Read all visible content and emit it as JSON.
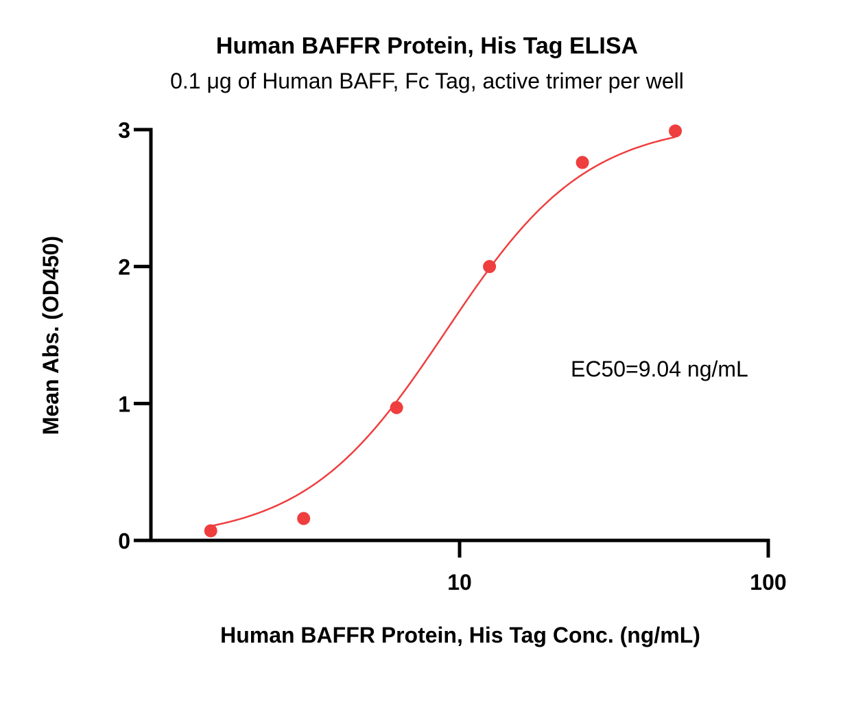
{
  "chart_data": {
    "type": "scatter",
    "title": "Human BAFFR Protein, His Tag ELISA",
    "subtitle": "0.1 μg of Human BAFF, Fc Tag, active trimer per well",
    "xlabel": "Human BAFFR Protein, His Tag Conc. (ng/mL)",
    "ylabel": "Mean Abs. (OD450)",
    "x_scale": "log",
    "xlim": [
      1.0,
      100
    ],
    "ylim": [
      0,
      3
    ],
    "x_ticks": [
      {
        "value": 10,
        "label": "10"
      },
      {
        "value": 100,
        "label": "100"
      }
    ],
    "y_ticks": [
      {
        "value": 0,
        "label": "0"
      },
      {
        "value": 1,
        "label": "1"
      },
      {
        "value": 2,
        "label": "2"
      },
      {
        "value": 3,
        "label": "3"
      }
    ],
    "grid": false,
    "legend": "none",
    "series": [
      {
        "x": [
          1.5625,
          3.125,
          6.25,
          12.5,
          25,
          50
        ],
        "y": [
          0.07,
          0.16,
          0.97,
          2.0,
          2.76,
          2.99
        ],
        "color": "#ef3e3e",
        "fit": {
          "type": "4PL",
          "bottom": 0.0,
          "top": 3.06,
          "ec50": 9.04,
          "hill": 1.9
        }
      }
    ],
    "annotations": [
      {
        "text": "EC50=9.04 ng/mL",
        "x": 30,
        "y": 1.25
      }
    ]
  }
}
